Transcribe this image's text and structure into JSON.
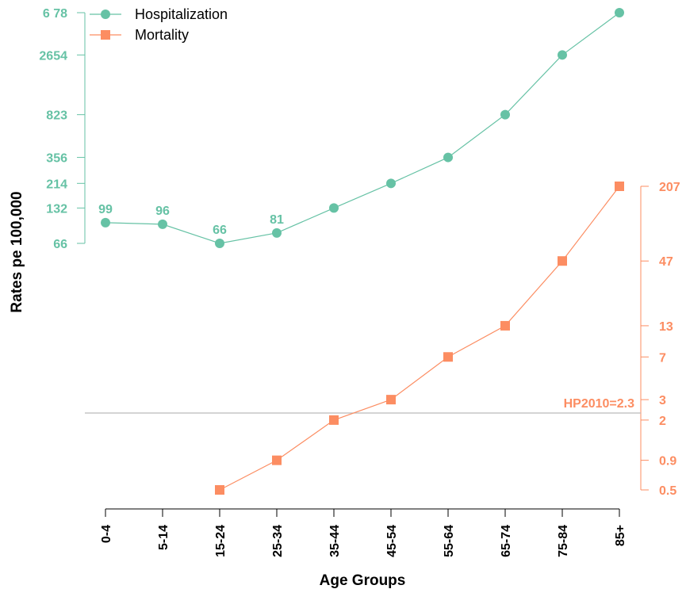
{
  "chart_data": {
    "type": "line",
    "xlabel": "Age Groups",
    "ylabel": "Rates pe 100,000",
    "categories": [
      "0-4",
      "5-14",
      "15-24",
      "25-34",
      "35-44",
      "45-54",
      "55-64",
      "65-74",
      "75-84",
      "85+"
    ],
    "left_axis": {
      "scale": "log",
      "tick_labels": [
        "66",
        "132",
        "214",
        "356",
        "823",
        "2654",
        "6 78"
      ],
      "tick_values": [
        66,
        132,
        214,
        356,
        823,
        2654,
        6078
      ],
      "color": "#66c2a5"
    },
    "right_axis": {
      "scale": "log",
      "tick_labels": [
        "0.5",
        "0.9",
        "2",
        "3",
        "7",
        "13",
        "47",
        "207"
      ],
      "tick_values": [
        0.5,
        0.9,
        2,
        3,
        7,
        13,
        47,
        207
      ],
      "color": "#fc8d62"
    },
    "series": [
      {
        "name": "Hospitalization",
        "axis": "left",
        "marker": "circle",
        "color": "#66c2a5",
        "values": [
          99,
          96,
          66,
          81,
          132,
          214,
          356,
          823,
          2654,
          6078
        ],
        "point_labels": [
          "99",
          "96",
          "66",
          "81",
          "",
          "",
          "",
          "",
          "",
          ""
        ]
      },
      {
        "name": "Mortality",
        "axis": "right",
        "marker": "square",
        "color": "#fc8d62",
        "values": [
          null,
          null,
          0.5,
          0.9,
          2,
          3,
          7,
          13,
          47,
          207
        ]
      }
    ],
    "reference_line": {
      "label": "HP2010=2.3",
      "value": 2.3,
      "axis": "right",
      "color": "#bbbbbb"
    },
    "legend_position": "top-left"
  }
}
